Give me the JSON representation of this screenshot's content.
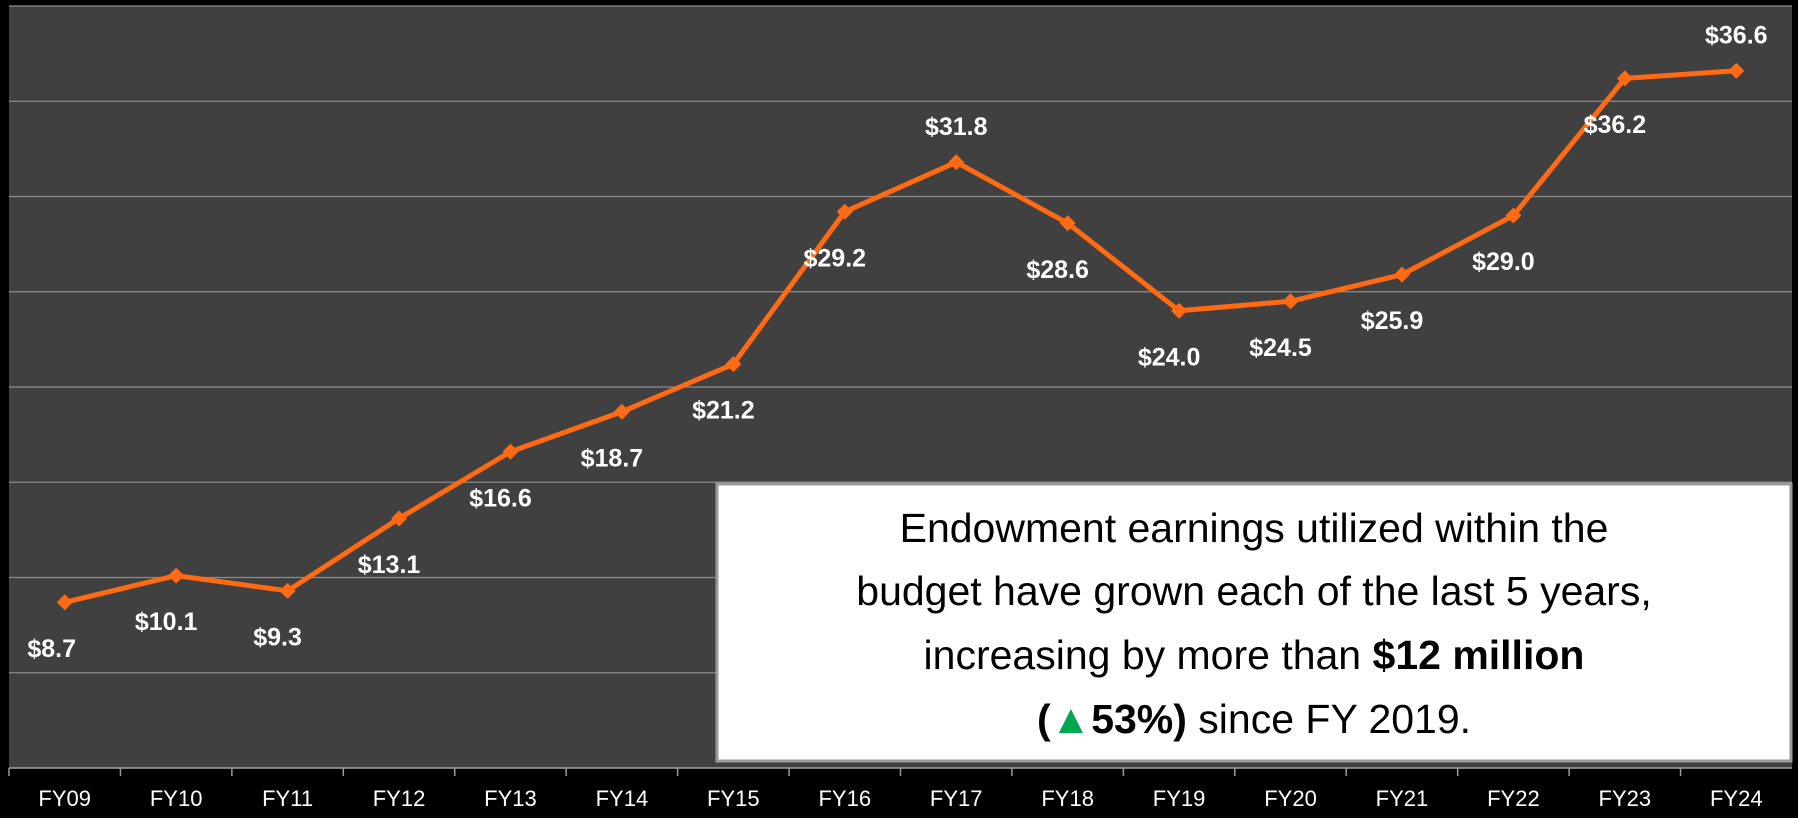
{
  "chart_data": {
    "type": "line",
    "categories": [
      "FY09",
      "FY10",
      "FY11",
      "FY12",
      "FY13",
      "FY14",
      "FY15",
      "FY16",
      "FY17",
      "FY18",
      "FY19",
      "FY20",
      "FY21",
      "FY22",
      "FY23",
      "FY24"
    ],
    "values": [
      8.7,
      10.1,
      9.3,
      13.1,
      16.6,
      18.7,
      21.2,
      29.2,
      31.8,
      28.6,
      24.0,
      24.5,
      25.9,
      29.0,
      36.2,
      36.6
    ],
    "value_labels": [
      "$8.7",
      "$10.1",
      "$9.3",
      "$13.1",
      "$16.6",
      "$18.7",
      "$21.2",
      "$29.2",
      "$31.8",
      "$28.6",
      "$24.0",
      "$24.5",
      "$25.9",
      "$29.0",
      "$36.2",
      "$36.6"
    ],
    "color": "#ff6a13",
    "ylim": [
      0,
      40
    ],
    "yticks": [
      0,
      5,
      10,
      15,
      20,
      25,
      30,
      35,
      40
    ],
    "grid": true,
    "annotation": {
      "lines": [
        [
          "Endowment earnings utilized within the"
        ],
        [
          "budget have grown each of the last 5 years,"
        ],
        [
          "increasing by more than ",
          "$12 million"
        ],
        [
          "(",
          "▲",
          "53%)",
          " since FY 2019."
        ]
      ]
    }
  }
}
